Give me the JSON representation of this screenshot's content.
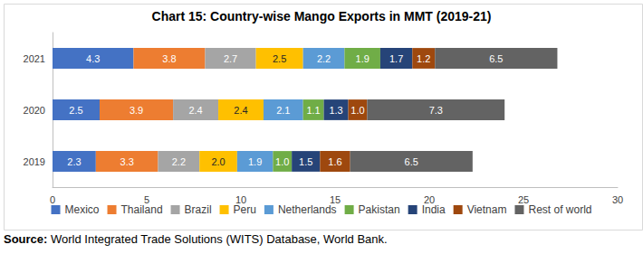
{
  "chart_data": {
    "type": "bar",
    "orientation": "horizontal",
    "stacked": true,
    "data_labels": true,
    "grid": false,
    "legend": "bottom",
    "title": "Chart 15: Country-wise Mango Exports in MMT (2019-21)",
    "source": "Source: World Integrated Trade Solutions (WITS) Database, World Bank.",
    "categories": [
      "2019",
      "2020",
      "2021"
    ],
    "xlim": [
      0,
      30
    ],
    "xticks": [
      0,
      5,
      10,
      15,
      20,
      25,
      30
    ],
    "series": [
      {
        "name": "Mexico",
        "color": "#4472c4",
        "values": [
          2.3,
          2.5,
          4.3
        ],
        "value_labels": [
          "2.3",
          "2.5",
          "4.3"
        ]
      },
      {
        "name": "Thailand",
        "color": "#ed7d31",
        "values": [
          3.3,
          3.9,
          3.8
        ],
        "value_labels": [
          "3.3",
          "3.9",
          "3.8"
        ]
      },
      {
        "name": "Brazil",
        "color": "#a5a5a5",
        "values": [
          2.2,
          2.4,
          2.7
        ],
        "value_labels": [
          "2.2",
          "2.4",
          "2.7"
        ]
      },
      {
        "name": "Peru",
        "color": "#ffc000",
        "values": [
          2.0,
          2.4,
          2.5
        ],
        "value_labels": [
          "2.0",
          "2.4",
          "2.5"
        ]
      },
      {
        "name": "Netherlands",
        "color": "#5b9bd5",
        "values": [
          1.9,
          2.1,
          2.2
        ],
        "value_labels": [
          "1.9",
          "2.1",
          "2.2"
        ]
      },
      {
        "name": "Pakistan",
        "color": "#70ad47",
        "values": [
          1.0,
          1.1,
          1.9
        ],
        "value_labels": [
          "1.0",
          "1.1",
          "1.9"
        ]
      },
      {
        "name": "India",
        "color": "#264478",
        "values": [
          1.5,
          1.3,
          1.7
        ],
        "value_labels": [
          "1.5",
          "1.3",
          "1.7"
        ]
      },
      {
        "name": "Vietnam",
        "color": "#9e480e",
        "values": [
          1.6,
          1.0,
          1.2
        ],
        "value_labels": [
          "1.6",
          "1.0",
          "1.2"
        ]
      },
      {
        "name": "Rest of world",
        "color": "#636363",
        "values": [
          6.5,
          7.3,
          6.5
        ],
        "value_labels": [
          "6.5",
          "7.3",
          "6.5"
        ]
      }
    ]
  }
}
